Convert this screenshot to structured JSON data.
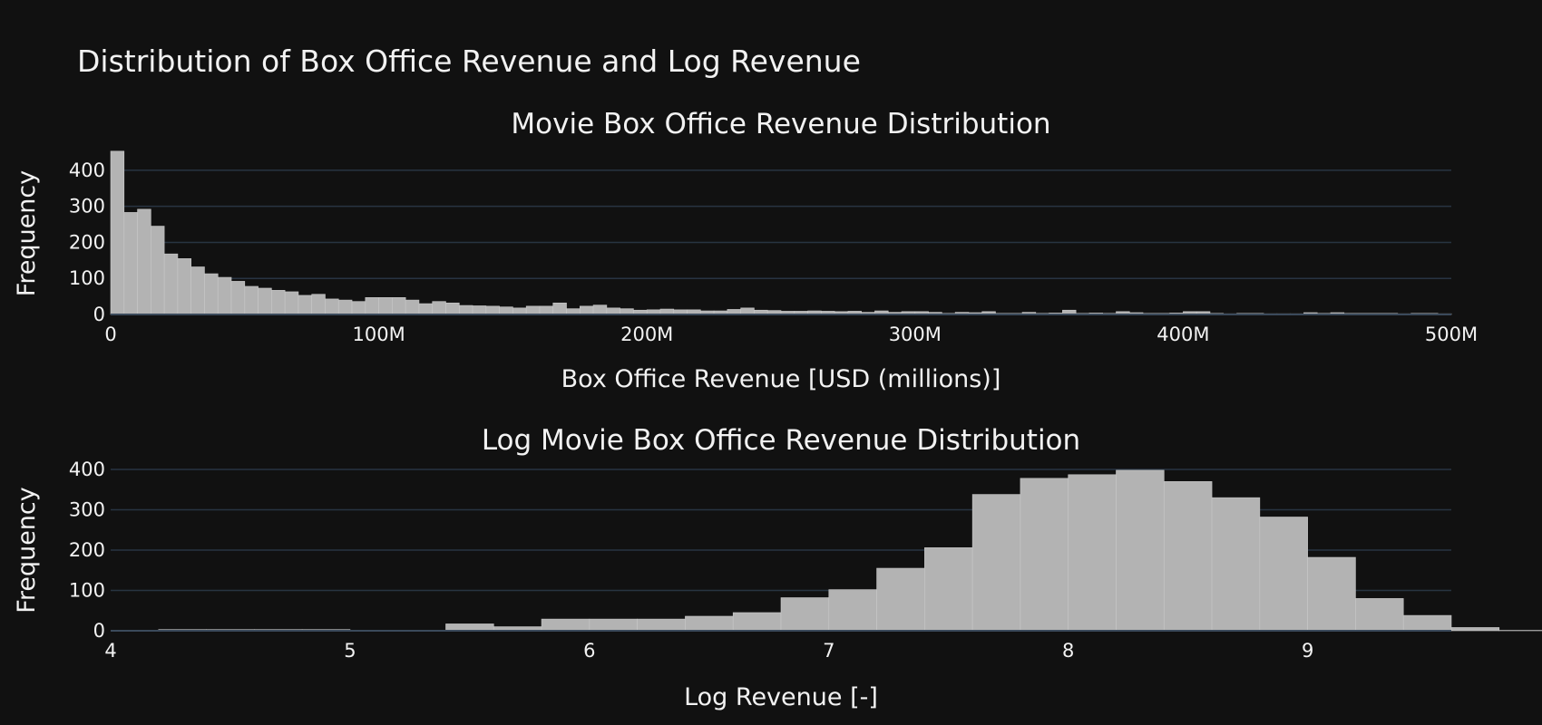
{
  "figure": {
    "title": "Distribution of Box Office Revenue and Log Revenue"
  },
  "chart_data": [
    {
      "type": "bar",
      "title": "Movie Box Office Revenue Distribution",
      "xlabel": "Box Office Revenue [USD (millions)]",
      "ylabel": "Frequency",
      "bin_width": 5,
      "x_start": 0,
      "xlim": [
        0,
        500
      ],
      "ylim": [
        0,
        450
      ],
      "grid": true,
      "x_ticks": [
        0,
        100,
        200,
        300,
        400,
        500
      ],
      "x_tick_labels": [
        "0",
        "100M",
        "200M",
        "300M",
        "400M",
        "500M"
      ],
      "y_ticks": [
        0,
        100,
        200,
        300,
        400
      ],
      "y_tick_labels": [
        "0",
        "100",
        "200",
        "300",
        "400"
      ],
      "values": [
        453,
        283,
        292,
        245,
        168,
        155,
        132,
        113,
        103,
        92,
        78,
        73,
        67,
        63,
        53,
        56,
        43,
        40,
        36,
        47,
        47,
        47,
        40,
        30,
        36,
        32,
        25,
        24,
        23,
        21,
        18,
        23,
        23,
        32,
        16,
        23,
        26,
        18,
        16,
        12,
        13,
        15,
        13,
        13,
        10,
        10,
        14,
        18,
        12,
        11,
        9,
        9,
        10,
        9,
        8,
        9,
        6,
        10,
        6,
        8,
        8,
        6,
        3,
        6,
        5,
        8,
        3,
        3,
        6,
        3,
        4,
        12,
        3,
        4,
        3,
        8,
        5,
        3,
        3,
        4,
        8,
        8,
        3,
        2,
        3,
        3,
        2,
        2,
        2,
        5,
        3,
        5,
        3,
        3,
        3,
        3,
        2,
        3,
        3,
        2
      ]
    },
    {
      "type": "bar",
      "title": "Log Movie Box Office Revenue Distribution",
      "xlabel": "Log Revenue [-]",
      "ylabel": "Frequency",
      "bin_width": 0.2,
      "x_start": 4.0,
      "xlim": [
        4,
        9.6
      ],
      "ylim": [
        0,
        400
      ],
      "grid": true,
      "x_ticks": [
        4,
        5,
        6,
        7,
        8,
        9
      ],
      "x_tick_labels": [
        "4",
        "5",
        "6",
        "7",
        "8",
        "9"
      ],
      "y_ticks": [
        0,
        100,
        200,
        300,
        400
      ],
      "y_tick_labels": [
        "0",
        "100",
        "200",
        "300",
        "400"
      ],
      "values": [
        0,
        3,
        3,
        3,
        3,
        1,
        1,
        17,
        10,
        29,
        29,
        29,
        36,
        45,
        82,
        102,
        155,
        206,
        338,
        378,
        387,
        398,
        370,
        330,
        282,
        182,
        80,
        38,
        8,
        1
      ]
    }
  ]
}
